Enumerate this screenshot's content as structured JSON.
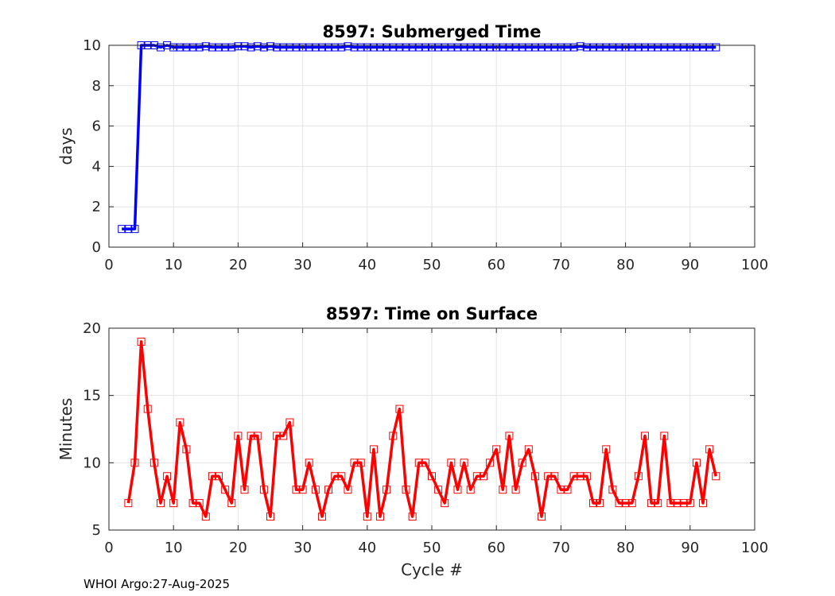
{
  "footer": "WHOI Argo:27-Aug-2025",
  "chart_data": [
    {
      "type": "line",
      "title": "8597: Submerged Time",
      "xlabel": "",
      "ylabel": "days",
      "xlim": [
        0,
        100
      ],
      "ylim": [
        0,
        10
      ],
      "xticks": [
        "0",
        "10",
        "20",
        "30",
        "40",
        "50",
        "60",
        "70",
        "80",
        "90",
        "100"
      ],
      "yticks": [
        "0",
        "2",
        "4",
        "6",
        "8",
        "10"
      ],
      "grid": true,
      "marker": "square",
      "color": "#0000ff",
      "series": [
        {
          "x": [
            2,
            3,
            4,
            5,
            6,
            7,
            8,
            9,
            10,
            11,
            12,
            13,
            14,
            15,
            16,
            17,
            18,
            19,
            20,
            21,
            22,
            23,
            24,
            25,
            26,
            27,
            28,
            29,
            30,
            31,
            32,
            33,
            34,
            35,
            36,
            37,
            38,
            39,
            40,
            41,
            42,
            43,
            44,
            45,
            46,
            47,
            48,
            49,
            50,
            51,
            52,
            53,
            54,
            55,
            56,
            57,
            58,
            59,
            60,
            61,
            62,
            63,
            64,
            65,
            66,
            67,
            68,
            69,
            70,
            71,
            72,
            73,
            74,
            75,
            76,
            77,
            78,
            79,
            80,
            81,
            82,
            83,
            84,
            85,
            86,
            87,
            88,
            89,
            90,
            91,
            92,
            93,
            94
          ],
          "values": [
            0.9,
            0.9,
            0.9,
            10.0,
            10.0,
            10.0,
            9.9,
            10.0,
            9.9,
            9.9,
            9.9,
            9.9,
            9.9,
            9.95,
            9.9,
            9.9,
            9.9,
            9.9,
            9.95,
            9.95,
            9.9,
            9.95,
            9.9,
            9.95,
            9.9,
            9.9,
            9.9,
            9.9,
            9.9,
            9.9,
            9.9,
            9.9,
            9.9,
            9.9,
            9.9,
            9.95,
            9.9,
            9.9,
            9.9,
            9.9,
            9.9,
            9.9,
            9.9,
            9.9,
            9.9,
            9.9,
            9.9,
            9.9,
            9.9,
            9.9,
            9.9,
            9.9,
            9.9,
            9.9,
            9.9,
            9.9,
            9.9,
            9.9,
            9.9,
            9.9,
            9.9,
            9.9,
            9.9,
            9.9,
            9.9,
            9.9,
            9.9,
            9.9,
            9.9,
            9.9,
            9.9,
            9.95,
            9.9,
            9.9,
            9.9,
            9.9,
            9.9,
            9.9,
            9.9,
            9.9,
            9.9,
            9.9,
            9.9,
            9.9,
            9.9,
            9.9,
            9.9,
            9.9,
            9.9,
            9.9,
            9.9,
            9.9,
            9.9
          ]
        }
      ]
    },
    {
      "type": "line",
      "title": "8597: Time on Surface",
      "xlabel": "Cycle #",
      "ylabel": "Minutes",
      "xlim": [
        0,
        100
      ],
      "ylim": [
        5,
        20
      ],
      "xticks": [
        "0",
        "10",
        "20",
        "30",
        "40",
        "50",
        "60",
        "70",
        "80",
        "90",
        "100"
      ],
      "yticks": [
        "5",
        "10",
        "15",
        "20"
      ],
      "grid": true,
      "marker": "square",
      "color": "#ff0000",
      "series": [
        {
          "x": [
            3,
            4,
            5,
            6,
            7,
            8,
            9,
            10,
            11,
            12,
            13,
            14,
            15,
            16,
            17,
            18,
            19,
            20,
            21,
            22,
            23,
            24,
            25,
            26,
            27,
            28,
            29,
            30,
            31,
            32,
            33,
            34,
            35,
            36,
            37,
            38,
            39,
            40,
            41,
            42,
            43,
            44,
            45,
            46,
            47,
            48,
            49,
            50,
            51,
            52,
            53,
            54,
            55,
            56,
            57,
            58,
            59,
            60,
            61,
            62,
            63,
            64,
            65,
            66,
            67,
            68,
            69,
            70,
            71,
            72,
            73,
            74,
            75,
            76,
            77,
            78,
            79,
            80,
            81,
            82,
            83,
            84,
            85,
            86,
            87,
            88,
            89,
            90,
            91,
            92,
            93,
            94
          ],
          "values": [
            7,
            10,
            19,
            14,
            10,
            7,
            9,
            7,
            13,
            11,
            7,
            7,
            6,
            9,
            9,
            8,
            7,
            12,
            8,
            12,
            12,
            8,
            6,
            12,
            12,
            13,
            8,
            8,
            10,
            8,
            6,
            8,
            9,
            9,
            8,
            10,
            10,
            6,
            11,
            6,
            8,
            12,
            14,
            8,
            6,
            10,
            10,
            9,
            8,
            7,
            10,
            8,
            10,
            8,
            9,
            9,
            10,
            11,
            8,
            12,
            8,
            10,
            11,
            9,
            6,
            9,
            9,
            8,
            8,
            9,
            9,
            9,
            7,
            7,
            11,
            8,
            7,
            7,
            7,
            9,
            12,
            7,
            7,
            12,
            7,
            7,
            7,
            7,
            10,
            7,
            11,
            9
          ]
        }
      ]
    }
  ]
}
